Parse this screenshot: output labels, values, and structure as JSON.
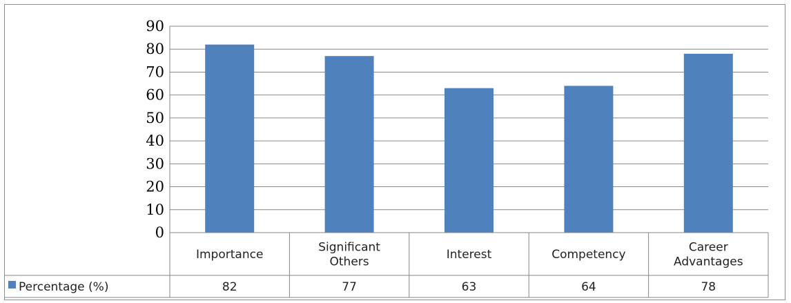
{
  "chart_data": {
    "type": "bar",
    "categories": [
      "Importance",
      "Significant Others",
      "Interest",
      "Competency",
      "Career Advantages"
    ],
    "category_lines": [
      [
        "Importance"
      ],
      [
        "Significant",
        "Others"
      ],
      [
        "Interest"
      ],
      [
        "Competency"
      ],
      [
        "Career",
        "Advantages"
      ]
    ],
    "series": [
      {
        "name": "Percentage (%)",
        "values": [
          82,
          77,
          63,
          64,
          78
        ]
      }
    ],
    "yticks": [
      "0",
      "10",
      "20",
      "30",
      "40",
      "50",
      "60",
      "70",
      "80",
      "90"
    ],
    "ylim": [
      0,
      90
    ],
    "grid": true,
    "legend": "data-table-left",
    "colors": {
      "bar": "#4f81bd",
      "grid": "#868686",
      "axis": "#868686"
    }
  }
}
